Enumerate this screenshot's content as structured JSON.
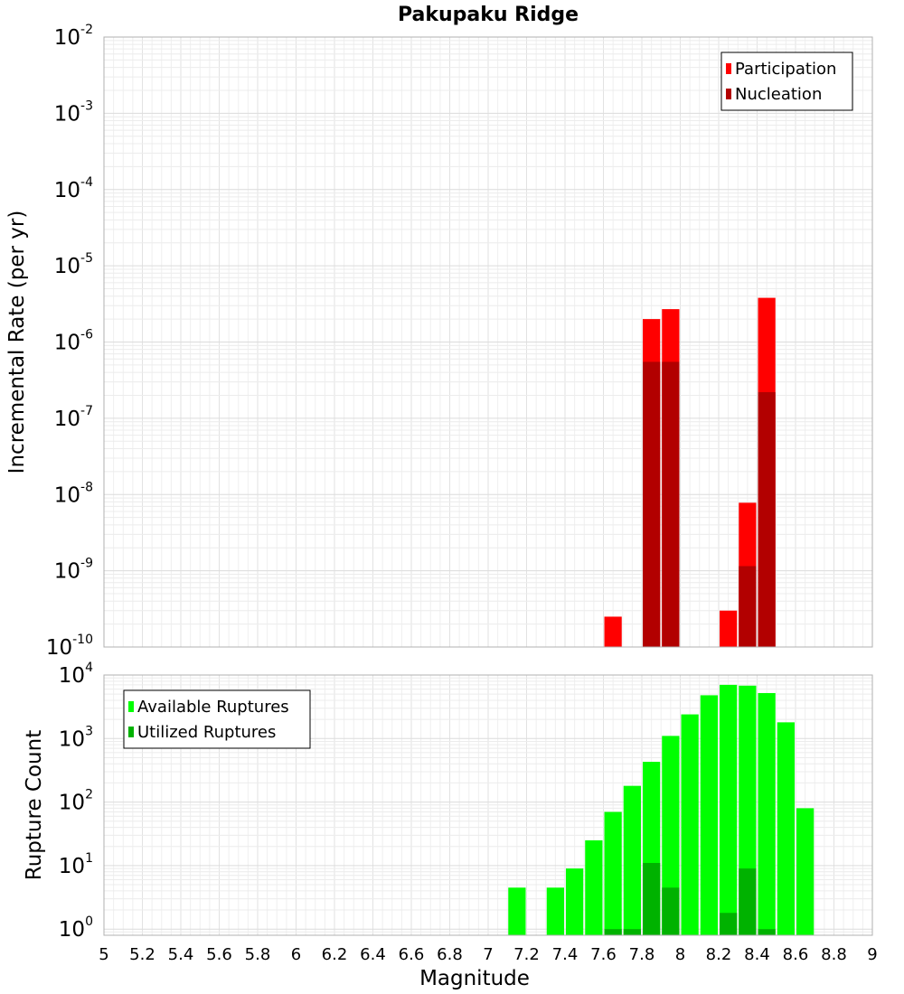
{
  "chart_data": [
    {
      "id": "rates",
      "type": "bar",
      "title": "Pakupaku Ridge",
      "ylabel": "Incremental Rate (per yr)",
      "yscale": "log",
      "ylim": [
        1e-10,
        0.01
      ],
      "xlim": [
        5,
        9
      ],
      "bin_width": 0.1,
      "grid": true,
      "legend_position": "top-right",
      "colors": {
        "Participation": "#ff0000",
        "Nucleation": "#b20000"
      },
      "series": [
        {
          "name": "Participation",
          "points": [
            {
              "x": 7.65,
              "y": 2.5e-10
            },
            {
              "x": 7.85,
              "y": 2e-06
            },
            {
              "x": 7.95,
              "y": 2.7e-06
            },
            {
              "x": 8.25,
              "y": 3e-10
            },
            {
              "x": 8.35,
              "y": 7.8e-09
            },
            {
              "x": 8.45,
              "y": 3.8e-06
            }
          ]
        },
        {
          "name": "Nucleation",
          "points": [
            {
              "x": 7.85,
              "y": 5.5e-07
            },
            {
              "x": 7.95,
              "y": 5.5e-07
            },
            {
              "x": 8.35,
              "y": 1.15e-09
            },
            {
              "x": 8.45,
              "y": 2.2e-07
            }
          ]
        }
      ]
    },
    {
      "id": "counts",
      "type": "bar",
      "title": "",
      "xlabel": "Magnitude",
      "ylabel": "Rupture Count",
      "yscale": "log",
      "ylim": [
        0.8,
        10000
      ],
      "xlim": [
        5,
        9
      ],
      "xticks": [
        "5",
        "5.2",
        "5.4",
        "5.6",
        "5.8",
        "6",
        "6.2",
        "6.4",
        "6.6",
        "6.8",
        "7",
        "7.2",
        "7.4",
        "7.6",
        "7.8",
        "8",
        "8.2",
        "8.4",
        "8.6",
        "8.8",
        "9"
      ],
      "bin_width": 0.1,
      "grid": true,
      "legend_position": "top-left",
      "colors": {
        "Available Ruptures": "#00ff00",
        "Utilized Ruptures": "#00b200"
      },
      "series": [
        {
          "name": "Available Ruptures",
          "points": [
            {
              "x": 7.15,
              "y": 4.5
            },
            {
              "x": 7.35,
              "y": 4.5
            },
            {
              "x": 7.45,
              "y": 9
            },
            {
              "x": 7.55,
              "y": 25
            },
            {
              "x": 7.65,
              "y": 70
            },
            {
              "x": 7.75,
              "y": 180
            },
            {
              "x": 7.85,
              "y": 430
            },
            {
              "x": 7.95,
              "y": 1100
            },
            {
              "x": 8.05,
              "y": 2400
            },
            {
              "x": 8.15,
              "y": 4800
            },
            {
              "x": 8.25,
              "y": 7000
            },
            {
              "x": 8.35,
              "y": 6800
            },
            {
              "x": 8.45,
              "y": 5200
            },
            {
              "x": 8.55,
              "y": 1800
            },
            {
              "x": 8.65,
              "y": 80
            }
          ]
        },
        {
          "name": "Utilized Ruptures",
          "points": [
            {
              "x": 7.65,
              "y": 1
            },
            {
              "x": 7.75,
              "y": 1
            },
            {
              "x": 7.85,
              "y": 11
            },
            {
              "x": 7.95,
              "y": 4.5
            },
            {
              "x": 8.25,
              "y": 1.8
            },
            {
              "x": 8.35,
              "y": 9
            },
            {
              "x": 8.45,
              "y": 1
            }
          ]
        }
      ]
    }
  ]
}
